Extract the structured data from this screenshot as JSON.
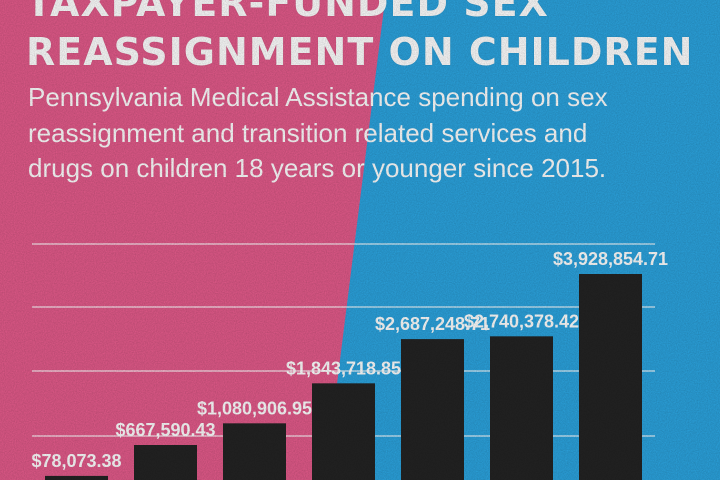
{
  "colors": {
    "pink": "#E25A8A",
    "blue": "#2BA3DE",
    "bar": "#232323",
    "text": "#FFFFFF",
    "grid": "#FFFFFF"
  },
  "title": {
    "line1": "TAXPAYER-FUNDED SEX",
    "line2": "REASSIGNMENT ON CHILDREN"
  },
  "subtitle": {
    "line1": "Pennsylvania Medical Assistance spending on sex",
    "line2": "reassignment and transition related services and",
    "line3": "drugs on children 18 years or younger since 2015."
  },
  "chart_data": {
    "type": "bar",
    "values": [
      78073.38,
      667590.43,
      1080906.95,
      1843718.85,
      2687248.71,
      2740378.42,
      3928854.71
    ],
    "value_labels": [
      "$78,073.38",
      "$667,590.43",
      "$1,080,906.95",
      "$1,843,718.85",
      "$2,687,248.71",
      "$2,740,378.42",
      "$3,928,854.71"
    ],
    "grid": true,
    "legend": "none"
  }
}
